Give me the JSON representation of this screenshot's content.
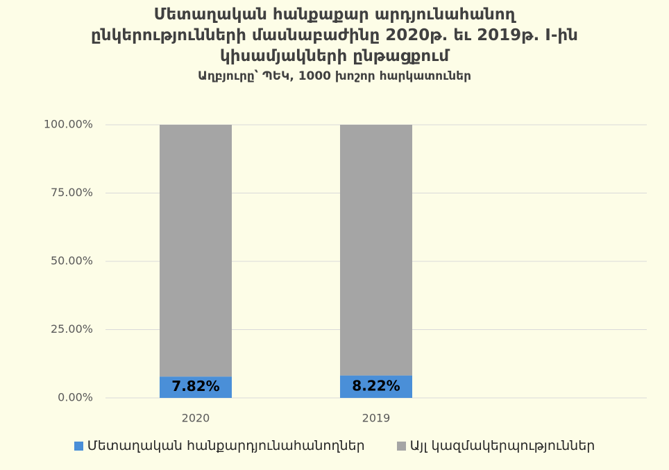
{
  "chart_data": {
    "type": "stacked_bar",
    "title": "Մետաղական հանքաքար արդյունահանող ընկերությունների մասնաբաժինը 2020թ. եւ 2019թ. I-ին կիսամյակների ընթացքում",
    "subtitle": "Աղբյուրը՝ ՊԵԿ, 1000 խոշոր հարկատուներ",
    "categories": [
      "2020",
      "2019",
      null
    ],
    "series": [
      {
        "name": "Մետաղական հանքարդյունահանողներ",
        "color": "#4a8fd8",
        "values": [
          7.82,
          8.22,
          null
        ],
        "value_labels": [
          "7.82%",
          "8.22%",
          null
        ]
      },
      {
        "name": "Այլ կազմակերպություններ",
        "color": "#a5a5a5",
        "values": [
          92.18,
          91.78,
          null
        ]
      }
    ],
    "ylim": [
      0,
      100
    ],
    "yticks": [
      {
        "value": 0,
        "label": "0.00%"
      },
      {
        "value": 25,
        "label": "25.00%"
      },
      {
        "value": 50,
        "label": "50.00%"
      },
      {
        "value": 75,
        "label": "75.00%"
      },
      {
        "value": 100,
        "label": "100.00%"
      }
    ],
    "grid": true,
    "legend": "bottom"
  }
}
